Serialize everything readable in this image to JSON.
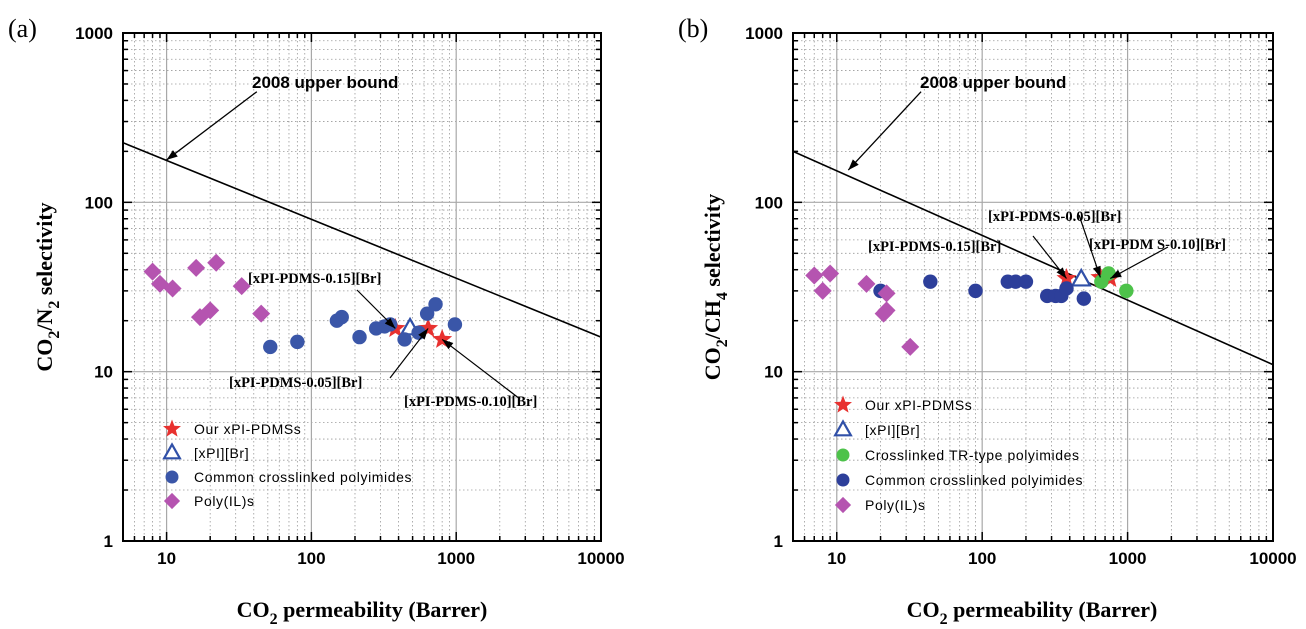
{
  "chart_data": [
    {
      "panel_label": "(a)",
      "type": "scatter",
      "xlabel": {
        "main": "CO",
        "sub": "2",
        "rest": " permeability (Barrer)"
      },
      "ylabel": {
        "p1": "CO",
        "s1": "2",
        "p2": "/N",
        "s2": "2",
        "p3": " selectivity"
      },
      "x_scale": "log",
      "y_scale": "log",
      "xlim": [
        5,
        10000
      ],
      "ylim": [
        1,
        1000
      ],
      "x_ticks": [
        {
          "value": 10,
          "label": "10"
        },
        {
          "value": 100,
          "label": "100"
        },
        {
          "value": 1000,
          "label": "1000"
        },
        {
          "value": 10000,
          "label": "10000"
        }
      ],
      "y_ticks": [
        {
          "value": 1,
          "label": "1"
        },
        {
          "value": 10,
          "label": "10"
        },
        {
          "value": 100,
          "label": "100"
        },
        {
          "value": 1000,
          "label": "1000"
        }
      ],
      "grid": true,
      "legend_placement": "bottom-left",
      "upper_bound": {
        "label": "2008 upper bound",
        "line": [
          [
            5,
            225
          ],
          [
            10000,
            16
          ]
        ],
        "arrow_from": [
          42,
          450
        ],
        "arrow_to": [
          10,
          178
        ]
      },
      "series": [
        {
          "name": "Our xPI-PDMSs",
          "marker": "star",
          "color": "#e8312f",
          "points": [
            [
              380,
              18
            ],
            [
              640,
              18
            ],
            [
              800,
              15.5
            ]
          ]
        },
        {
          "name": "[xPI][Br]",
          "marker": "triangle-open",
          "color": "#3050a8",
          "points": [
            [
              480,
              18
            ]
          ]
        },
        {
          "name": "Common crosslinked polyimides",
          "marker": "circle",
          "color": "#3a56a8",
          "points": [
            [
              52,
              14
            ],
            [
              80,
              15
            ],
            [
              150,
              20
            ],
            [
              162,
              21
            ],
            [
              215,
              16
            ],
            [
              280,
              18
            ],
            [
              320,
              18.5
            ],
            [
              350,
              19
            ],
            [
              440,
              15.5
            ],
            [
              550,
              17
            ],
            [
              630,
              22
            ],
            [
              720,
              25
            ],
            [
              980,
              19
            ]
          ]
        },
        {
          "name": "Poly(IL)s",
          "marker": "diamond",
          "color": "#b554b0",
          "points": [
            [
              8,
              39
            ],
            [
              9,
              33
            ],
            [
              11,
              31
            ],
            [
              16,
              41
            ],
            [
              17,
              21
            ],
            [
              20,
              23
            ],
            [
              22,
              44
            ],
            [
              33,
              32
            ],
            [
              45,
              22
            ]
          ]
        }
      ],
      "annotations": [
        {
          "text": "[xPI-PDMS-0.15][Br]",
          "arrow_to": [
            380,
            18
          ]
        },
        {
          "text": "[xPI-PDMS-0.05][Br]",
          "arrow_to": [
            640,
            18
          ]
        },
        {
          "text": "[xPI-PDMS-0.10][Br]",
          "arrow_to": [
            800,
            15.5
          ]
        }
      ]
    },
    {
      "panel_label": "(b)",
      "type": "scatter",
      "xlabel": {
        "main": "CO",
        "sub": "2",
        "rest": " permeability (Barrer)"
      },
      "ylabel": {
        "p1": "CO",
        "s1": "2",
        "p2": "/CH",
        "s2": "4",
        "p3": " selectivity"
      },
      "x_scale": "log",
      "y_scale": "log",
      "xlim": [
        5,
        10000
      ],
      "ylim": [
        1,
        1000
      ],
      "x_ticks": [
        {
          "value": 10,
          "label": "10"
        },
        {
          "value": 100,
          "label": "100"
        },
        {
          "value": 1000,
          "label": "1000"
        },
        {
          "value": 10000,
          "label": "10000"
        }
      ],
      "y_ticks": [
        {
          "value": 1,
          "label": "1"
        },
        {
          "value": 10,
          "label": "10"
        },
        {
          "value": 100,
          "label": "100"
        },
        {
          "value": 1000,
          "label": "1000"
        }
      ],
      "grid": true,
      "legend_placement": "bottom-left",
      "upper_bound": {
        "label": "2008 upper bound",
        "line": [
          [
            5,
            200
          ],
          [
            10000,
            11
          ]
        ],
        "arrow_from": [
          38,
          450
        ],
        "arrow_to": [
          12,
          155
        ]
      },
      "series": [
        {
          "name": "Our xPI-PDMSs",
          "marker": "star",
          "color": "#e8312f",
          "points": [
            [
              380,
              35.5
            ],
            [
              650,
              36
            ],
            [
              760,
              35.5
            ]
          ]
        },
        {
          "name": "[xPI][Br]",
          "marker": "triangle-open",
          "color": "#3050a8",
          "points": [
            [
              480,
              35
            ]
          ]
        },
        {
          "name": "Crosslinked TR-type polyimides",
          "marker": "circle",
          "color": "#4dc24a",
          "points": [
            [
              660,
              34
            ],
            [
              740,
              38
            ],
            [
              980,
              30
            ]
          ]
        },
        {
          "name": "Common crosslinked polyimides",
          "marker": "circle",
          "color": "#2d3f9a",
          "points": [
            [
              20,
              30
            ],
            [
              44,
              34
            ],
            [
              90,
              30
            ],
            [
              150,
              34
            ],
            [
              170,
              34
            ],
            [
              200,
              34
            ],
            [
              280,
              28
            ],
            [
              320,
              28
            ],
            [
              350,
              28
            ],
            [
              380,
              31
            ],
            [
              500,
              27
            ]
          ]
        },
        {
          "name": "Poly(IL)s",
          "marker": "diamond",
          "color": "#b554b0",
          "points": [
            [
              7,
              37
            ],
            [
              8,
              30
            ],
            [
              9,
              38
            ],
            [
              16,
              33
            ],
            [
              21,
              22
            ],
            [
              22,
              23
            ],
            [
              22,
              29
            ],
            [
              32,
              14
            ]
          ]
        }
      ],
      "annotations": [
        {
          "text": "[xPI-PDMS-0.15][Br]",
          "arrow_to": [
            380,
            35.5
          ]
        },
        {
          "text": "[xPI-PDMS-0.05][Br]",
          "arrow_to": [
            650,
            36
          ]
        },
        {
          "text": "[xPI-PDM S-0.10][Br]",
          "arrow_to": [
            760,
            35.5
          ]
        }
      ]
    }
  ]
}
